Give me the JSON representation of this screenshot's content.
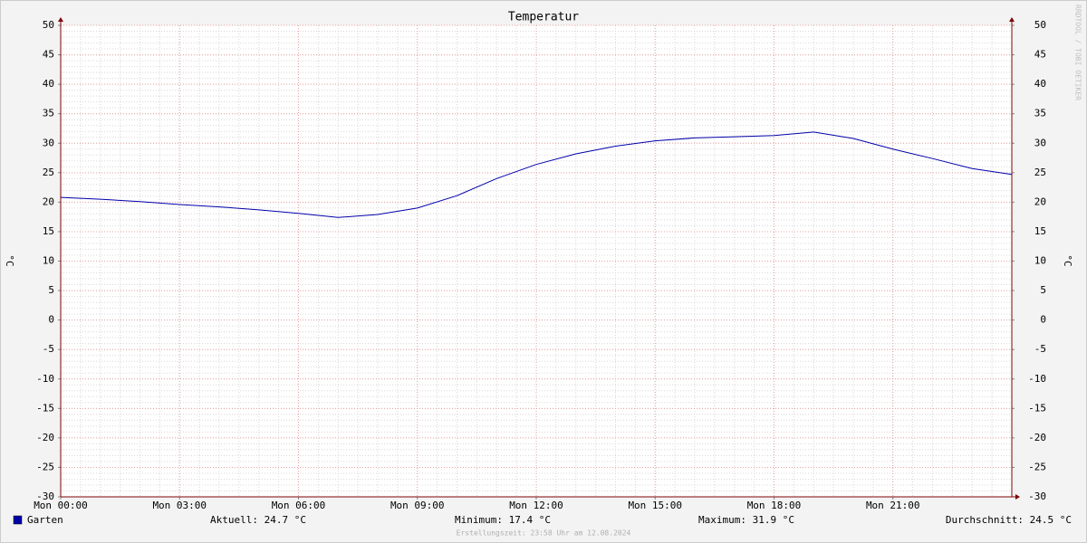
{
  "chart_data": {
    "type": "line",
    "title": "Temperatur",
    "ylabel": "°C",
    "y2label": "°C",
    "watermark": "RRDTOOL / TOBI OETIKER",
    "x": [
      0,
      1,
      2,
      3,
      4,
      5,
      6,
      7,
      8,
      9,
      10,
      11,
      12,
      13,
      14,
      15,
      16,
      17,
      18,
      19,
      20,
      21,
      22,
      23,
      24
    ],
    "series": [
      {
        "name": "Garten",
        "color": "#0000aa",
        "values": [
          20.8,
          20.5,
          20.1,
          19.6,
          19.2,
          18.7,
          18.1,
          17.4,
          17.9,
          19.0,
          21.1,
          24.0,
          26.4,
          28.2,
          29.5,
          30.4,
          30.9,
          31.1,
          31.3,
          31.9,
          30.8,
          29.0,
          27.4,
          25.7,
          24.7
        ]
      }
    ],
    "xlim": [
      0,
      24
    ],
    "xticks": [
      {
        "value": 0,
        "label": "Mon 00:00"
      },
      {
        "value": 3,
        "label": "Mon 03:00"
      },
      {
        "value": 6,
        "label": "Mon 06:00"
      },
      {
        "value": 9,
        "label": "Mon 09:00"
      },
      {
        "value": 12,
        "label": "Mon 12:00"
      },
      {
        "value": 15,
        "label": "Mon 15:00"
      },
      {
        "value": 18,
        "label": "Mon 18:00"
      },
      {
        "value": 21,
        "label": "Mon 21:00"
      }
    ],
    "ylim": [
      -30,
      50
    ],
    "yticks": [
      -30,
      -25,
      -20,
      -15,
      -10,
      -5,
      0,
      5,
      10,
      15,
      20,
      25,
      30,
      35,
      40,
      45,
      50
    ],
    "y2lim": [
      -30,
      50
    ],
    "y2ticks": [
      -30,
      -25,
      -20,
      -15,
      -10,
      -5,
      0,
      5,
      10,
      15,
      20,
      25,
      30,
      35,
      40,
      45,
      50
    ],
    "x_minor_step": 0.5,
    "y_minor_step": 1,
    "grid": true,
    "stats": [
      "Aktuell: 24.7 °C",
      "Minimum: 17.4 °C",
      "Maximum: 31.9 °C",
      "Durchschnitt: 24.5 °C"
    ],
    "footer": "Erstellungszeit: 23:58 Uhr am 12.08.2024"
  }
}
